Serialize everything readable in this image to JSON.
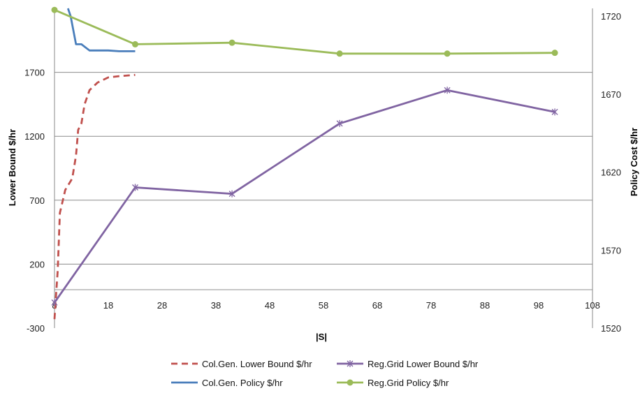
{
  "chart_data": {
    "type": "line",
    "xlabel": "|S|",
    "ylabel_left": "Lower Bound $/hr",
    "ylabel_right": "Policy Cost $/hr",
    "xlim": [
      8,
      108
    ],
    "x_ticks": [
      8,
      18,
      28,
      38,
      48,
      58,
      68,
      78,
      88,
      98,
      108
    ],
    "ylim_left": [
      -300,
      2200
    ],
    "y_ticks_left": [
      -300,
      200,
      700,
      1200,
      1700
    ],
    "ylim_right": [
      1520,
      1725
    ],
    "y_ticks_right": [
      1520,
      1570,
      1620,
      1670,
      1720
    ],
    "grid": true,
    "legend_position": "bottom",
    "series": [
      {
        "name": "Col.Gen. Lower Bound $/hr",
        "axis": "left",
        "color": "#c0504d",
        "style": "dashed",
        "marker": "none",
        "x": [
          8,
          8.2,
          8.6,
          9,
          10,
          11.3,
          12,
          12.4,
          13,
          13.6,
          14.5,
          16,
          18,
          20,
          23
        ],
        "y": [
          -230,
          -100,
          150,
          600,
          780,
          870,
          1050,
          1250,
          1300,
          1450,
          1560,
          1620,
          1660,
          1670,
          1680
        ]
      },
      {
        "name": "Col.Gen. Policy $/hr",
        "axis": "right",
        "color": "#4a7ebb",
        "style": "solid",
        "marker": "none",
        "x": [
          10.5,
          11,
          12,
          13,
          14.5,
          18,
          20,
          23
        ],
        "y": [
          1725,
          1720,
          1702,
          1702,
          1698,
          1698,
          1697.5,
          1697.5
        ]
      },
      {
        "name": "Reg.Grid Lower Bound $/hr",
        "axis": "left",
        "color": "#8064a2",
        "style": "solid",
        "marker": "x",
        "x": [
          8,
          23,
          41,
          61,
          81,
          101
        ],
        "y": [
          -100,
          800,
          750,
          1300,
          1560,
          1390
        ]
      },
      {
        "name": "Reg.Grid Policy $/hr",
        "axis": "right",
        "color": "#9bbb59",
        "style": "solid",
        "marker": "circle",
        "x": [
          8,
          23,
          41,
          61,
          81,
          101
        ],
        "y": [
          1724,
          1702,
          1703,
          1696,
          1696,
          1696.5
        ]
      }
    ]
  }
}
